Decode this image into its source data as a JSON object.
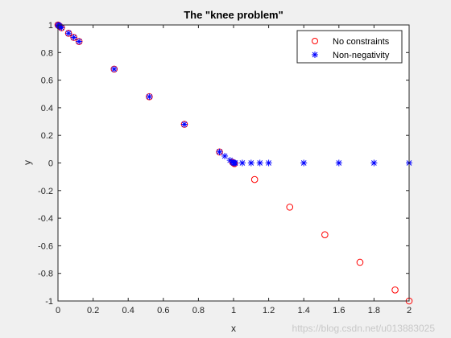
{
  "chart_data": {
    "type": "scatter",
    "title": "The \"knee problem\"",
    "xlabel": "x",
    "ylabel": "y",
    "xlim": [
      0,
      2
    ],
    "ylim": [
      -1,
      1
    ],
    "xticks": [
      "0",
      "0.2",
      "0.4",
      "0.6",
      "0.8",
      "1",
      "1.2",
      "1.4",
      "1.6",
      "1.8",
      "2"
    ],
    "yticks": [
      "1",
      "0.8",
      "0.6",
      "0.4",
      "0.2",
      "0",
      "-0.2",
      "-0.4",
      "-0.6",
      "-0.8",
      "-1"
    ],
    "grid": false,
    "legend_position": "top-right",
    "series": [
      {
        "name": "No constraints",
        "marker": "circle",
        "color": "#ff0000",
        "x": [
          0.0,
          0.005,
          0.01,
          0.02,
          0.06,
          0.09,
          0.12,
          0.32,
          0.52,
          0.72,
          0.92,
          0.995,
          1.0,
          1.005,
          1.12,
          1.32,
          1.52,
          1.72,
          1.92,
          2.0
        ],
        "y": [
          1.0,
          0.995,
          0.99,
          0.98,
          0.94,
          0.91,
          0.88,
          0.68,
          0.48,
          0.28,
          0.08,
          0.005,
          0.0,
          -0.005,
          -0.12,
          -0.32,
          -0.52,
          -0.72,
          -0.92,
          -1.0
        ]
      },
      {
        "name": "Non-negativity",
        "marker": "asterisk",
        "color": "#0000ff",
        "x": [
          0.0,
          0.005,
          0.01,
          0.02,
          0.06,
          0.09,
          0.12,
          0.32,
          0.52,
          0.72,
          0.92,
          0.95,
          0.98,
          0.995,
          1.0,
          1.005,
          1.01,
          1.05,
          1.1,
          1.15,
          1.2,
          1.4,
          1.6,
          1.8,
          2.0
        ],
        "y": [
          1.0,
          0.995,
          0.99,
          0.98,
          0.94,
          0.91,
          0.88,
          0.68,
          0.48,
          0.28,
          0.08,
          0.05,
          0.02,
          0.005,
          0.0,
          0.0,
          0.0,
          0.0,
          0.0,
          0.0,
          0.0,
          0.0,
          0.0,
          0.0,
          0.0
        ]
      }
    ]
  },
  "watermark": "https://blog.csdn.net/u013883025"
}
